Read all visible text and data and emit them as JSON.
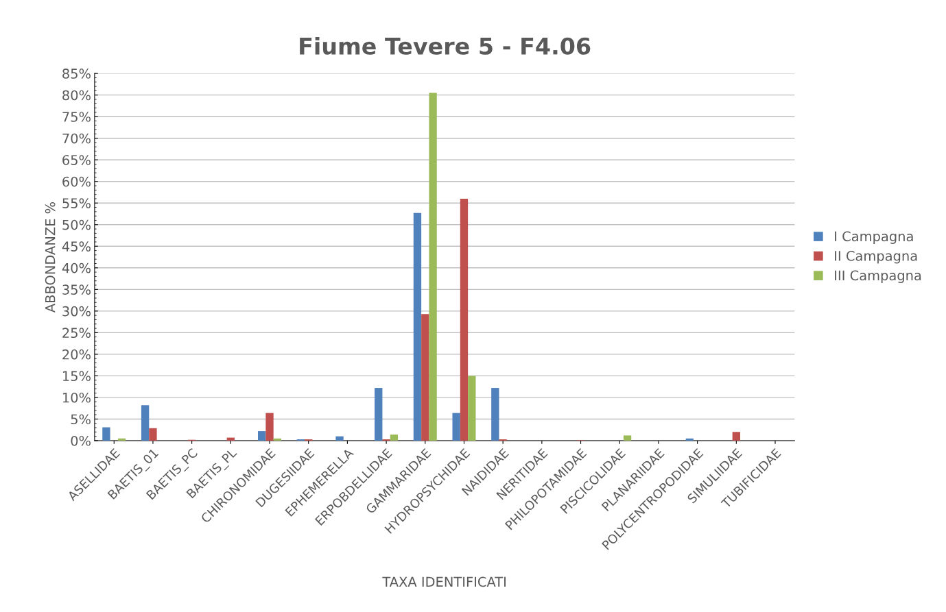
{
  "chart_data": {
    "type": "bar",
    "title": "Fiume Tevere 5 - F4.06",
    "xlabel": "TAXA IDENTIFICATI",
    "ylabel": "ABBONDANZE %",
    "categories": [
      "ASELLIDAE",
      "BAETIS_01",
      "BAETIS_PC",
      "BAETIS_PL",
      "CHIRONOMIDAE",
      "DUGESIIDAE",
      "EPHEMERELLA",
      "ERPOBDELLIDAE",
      "GAMMARIDAE",
      "HYDROPSYCHIDAE",
      "NAIDIDAE",
      "NERITIDAE",
      "PHILOPOTAMIDAE",
      "PISCICOLIDAE",
      "PLANARIIDAE",
      "POLYCENTROPODIDAE",
      "SIMULIIDAE",
      "TUBIFICIDAE"
    ],
    "series": [
      {
        "name": "I Campagna",
        "color": "#4f81bd",
        "values": [
          3.1,
          8.2,
          0,
          0,
          2.2,
          0.3,
          1.0,
          12.2,
          52.7,
          6.4,
          12.2,
          0,
          0,
          0,
          0,
          0.5,
          0,
          0
        ]
      },
      {
        "name": "II Campagna",
        "color": "#c0504d",
        "values": [
          0,
          2.9,
          0.2,
          0.7,
          6.4,
          0.3,
          0,
          0.3,
          29.3,
          56.0,
          0.3,
          0,
          0.1,
          0,
          0,
          0,
          2.0,
          0
        ]
      },
      {
        "name": "III Campagna",
        "color": "#9bbb59",
        "values": [
          0.5,
          0,
          0,
          0,
          0.5,
          0,
          0,
          1.4,
          80.5,
          15.0,
          0,
          0,
          0,
          1.2,
          0,
          0,
          0,
          0
        ]
      }
    ],
    "ylim": [
      0,
      85
    ],
    "yticks": [
      {
        "value": 0,
        "label": "0%"
      },
      {
        "value": 5,
        "label": "5%"
      },
      {
        "value": 10,
        "label": "10%"
      },
      {
        "value": 15,
        "label": "15%"
      },
      {
        "value": 20,
        "label": "20%"
      },
      {
        "value": 25,
        "label": "25%"
      },
      {
        "value": 30,
        "label": "30%"
      },
      {
        "value": 35,
        "label": "35%"
      },
      {
        "value": 40,
        "label": "40%"
      },
      {
        "value": 45,
        "label": "45%"
      },
      {
        "value": 50,
        "label": "50%"
      },
      {
        "value": 55,
        "label": "55%"
      },
      {
        "value": 60,
        "label": "60%"
      },
      {
        "value": 65,
        "label": "65%"
      },
      {
        "value": 70,
        "label": "70%"
      },
      {
        "value": 75,
        "label": "75%"
      },
      {
        "value": 80,
        "label": "80%"
      },
      {
        "value": 85,
        "label": "85%"
      }
    ],
    "grid": "y",
    "legend": "right"
  }
}
